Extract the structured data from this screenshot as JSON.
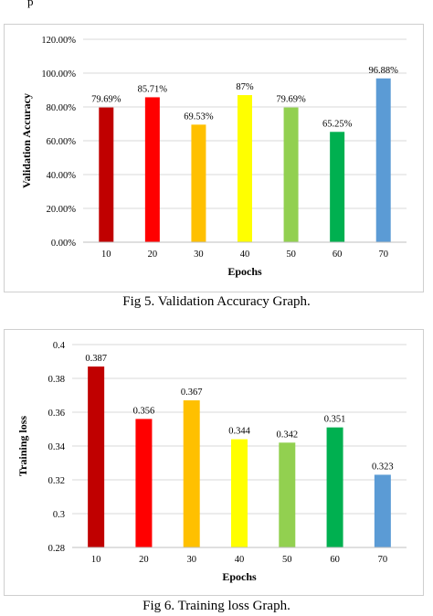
{
  "header_fragment": "p",
  "figures": [
    {
      "caption": "Fig 5. Validation Accuracy Graph.",
      "chart_data": {
        "type": "bar",
        "title": "",
        "xlabel": "Epochs",
        "ylabel": "Validation Accuracy",
        "categories": [
          "10",
          "20",
          "30",
          "40",
          "50",
          "60",
          "70"
        ],
        "values": [
          79.69,
          85.71,
          69.53,
          87,
          79.69,
          65.25,
          96.88
        ],
        "data_labels": [
          "79.69%",
          "85.71%",
          "69.53%",
          "87%",
          "79.69%",
          "65.25%",
          "96.88%"
        ],
        "yticks": [
          0,
          20,
          40,
          60,
          80,
          100,
          120
        ],
        "ytick_labels": [
          "0.00%",
          "20.00%",
          "40.00%",
          "60.00%",
          "80.00%",
          "100.00%",
          "120.00%"
        ],
        "ylim": [
          0,
          120
        ],
        "grid": true,
        "legend": "none",
        "bar_colors": [
          "#c00000",
          "#ff0000",
          "#ffc000",
          "#ffff00",
          "#92d050",
          "#00b050",
          "#5b9bd5"
        ]
      }
    },
    {
      "caption": "Fig 6. Training loss Graph.",
      "chart_data": {
        "type": "bar",
        "title": "",
        "xlabel": "Epochs",
        "ylabel": "Training loss",
        "categories": [
          "10",
          "20",
          "30",
          "40",
          "50",
          "60",
          "70"
        ],
        "values": [
          0.387,
          0.356,
          0.367,
          0.344,
          0.342,
          0.351,
          0.323
        ],
        "data_labels": [
          "0.387",
          "0.356",
          "0.367",
          "0.344",
          "0.342",
          "0.351",
          "0.323"
        ],
        "yticks": [
          0.28,
          0.3,
          0.32,
          0.34,
          0.36,
          0.38,
          0.4
        ],
        "ytick_labels": [
          "0.28",
          "0.3",
          "0.32",
          "0.34",
          "0.36",
          "0.38",
          "0.4"
        ],
        "ylim": [
          0.28,
          0.4
        ],
        "grid": true,
        "legend": "none",
        "bar_colors": [
          "#c00000",
          "#ff0000",
          "#ffc000",
          "#ffff00",
          "#92d050",
          "#00b050",
          "#5b9bd5"
        ]
      }
    }
  ]
}
